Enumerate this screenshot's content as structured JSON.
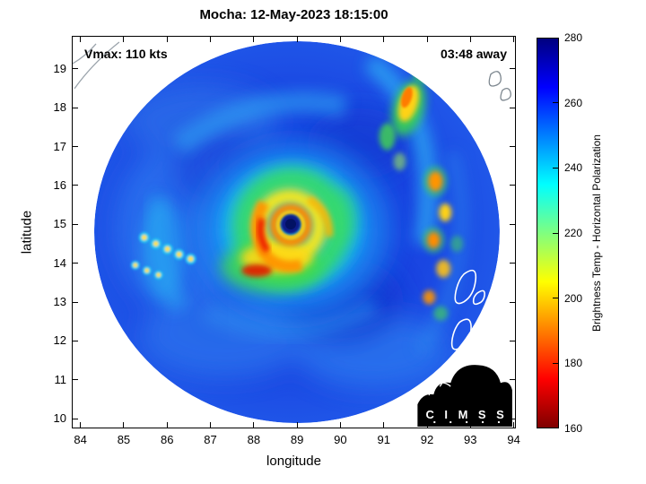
{
  "title": "Mocha: 12-May-2023 18:15:00",
  "annotations": {
    "vmax": "Vmax: 110 kts",
    "eta": "03:48 away"
  },
  "axes": {
    "xlabel": "longitude",
    "ylabel": "latitude",
    "x_ticks": [
      84,
      85,
      86,
      87,
      88,
      89,
      90,
      91,
      92,
      93,
      94
    ],
    "y_ticks": [
      10,
      11,
      12,
      13,
      14,
      15,
      16,
      17,
      18,
      19
    ],
    "xlim": [
      83.8,
      94.05
    ],
    "ylim": [
      9.75,
      19.85
    ]
  },
  "colorbar": {
    "label": "Brightness Temp - Horizontal Polarization",
    "min": 160,
    "max": 280,
    "ticks": [
      160,
      180,
      200,
      220,
      240,
      260,
      280
    ],
    "stops": [
      {
        "value": 160,
        "color": "#7f0000"
      },
      {
        "value": 175,
        "color": "#ff0000"
      },
      {
        "value": 205,
        "color": "#ffff00"
      },
      {
        "value": 235,
        "color": "#00ffff"
      },
      {
        "value": 265,
        "color": "#0000ff"
      },
      {
        "value": 280,
        "color": "#00007f"
      }
    ]
  },
  "logo": {
    "text": "C I M S S"
  },
  "chart_data": {
    "type": "heatmap",
    "title": "Mocha: 12-May-2023 18:15:00",
    "xlabel": "longitude",
    "ylabel": "latitude",
    "xlim": [
      83.8,
      94.05
    ],
    "ylim": [
      9.75,
      19.85
    ],
    "grid": false,
    "colorbar_label": "Brightness Temp - Horizontal Polarization",
    "colorbar_range": [
      160,
      280
    ],
    "colorbar_ticks": [
      160,
      180,
      200,
      220,
      240,
      260,
      280
    ],
    "colormap": "jet-reversed (low brightness temp = red/orange, high brightness temp = blue)",
    "storm": {
      "name": "Mocha",
      "datetime": "12-May-2023 18:15:00",
      "vmax_kts": 110,
      "time_offset_label": "03:48 away",
      "eye_location": {
        "lon": 88.85,
        "lat": 15.0
      }
    },
    "swath": {
      "shape": "circular",
      "center": {
        "lon": 89.0,
        "lat": 14.8
      },
      "radius_deg": 4.7
    },
    "features": [
      {
        "name": "eye",
        "lon": 88.85,
        "lat": 15.0,
        "approx_tb_K": 272
      },
      {
        "name": "eyewall-ring",
        "lon": 88.8,
        "lat": 14.9,
        "approx_tb_K": 192
      },
      {
        "name": "inner-core-warm-band-sw",
        "lon": 88.3,
        "lat": 13.9,
        "approx_tb_K": 175
      },
      {
        "name": "ne-convective-cell",
        "lon": 91.3,
        "lat": 17.9,
        "approx_tb_K": 195
      },
      {
        "name": "east-scattered-cells",
        "lon": 92.2,
        "lat": 14.5,
        "approx_tb_K": 205
      },
      {
        "name": "west-speckle-artifacts",
        "lon": 86.2,
        "lat": 14.2,
        "approx_tb_K": 215
      },
      {
        "name": "background-environment",
        "lon": 89.0,
        "lat": 11.5,
        "approx_tb_K": 256
      }
    ]
  }
}
